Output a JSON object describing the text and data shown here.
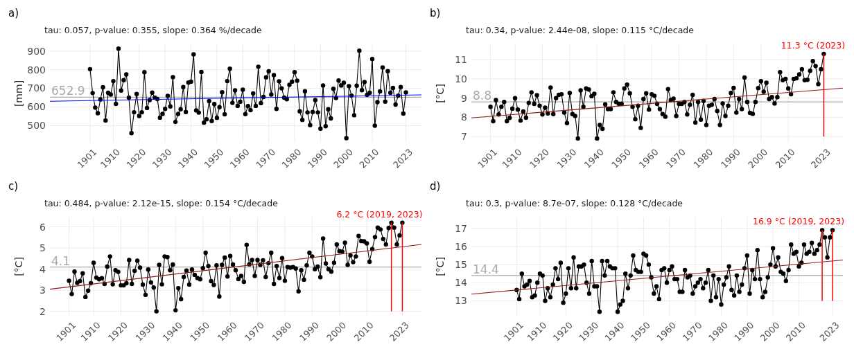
{
  "chart_data": [
    {
      "type": "line",
      "title": "a)",
      "subtitle": "tau: 0.057, p-value: 0.355, slope: 0.364 %/decade",
      "ylabel": "[mm]",
      "xlim": [
        1885.5,
        2029
      ],
      "ylim": [
        409,
        936
      ],
      "yticks": [
        500,
        600,
        700,
        800,
        900
      ],
      "xticks": [
        1901,
        1910,
        1920,
        1930,
        1940,
        1950,
        1960,
        1970,
        1980,
        1990,
        2000,
        2010,
        2023
      ],
      "grid": true,
      "marker": "circle",
      "x": [
        1901,
        1902,
        1903,
        1904,
        1905,
        1906,
        1907,
        1908,
        1909,
        1910,
        1911,
        1912,
        1913,
        1914,
        1915,
        1916,
        1917,
        1918,
        1919,
        1920,
        1921,
        1922,
        1923,
        1924,
        1925,
        1926,
        1927,
        1928,
        1929,
        1930,
        1931,
        1932,
        1933,
        1934,
        1935,
        1936,
        1937,
        1938,
        1939,
        1940,
        1941,
        1942,
        1943,
        1944,
        1945,
        1946,
        1947,
        1948,
        1949,
        1950,
        1951,
        1952,
        1953,
        1954,
        1955,
        1956,
        1957,
        1958,
        1959,
        1960,
        1961,
        1962,
        1963,
        1964,
        1965,
        1966,
        1967,
        1968,
        1969,
        1970,
        1971,
        1972,
        1973,
        1974,
        1975,
        1976,
        1977,
        1978,
        1979,
        1980,
        1981,
        1982,
        1983,
        1984,
        1985,
        1986,
        1987,
        1988,
        1989,
        1990,
        1991,
        1992,
        1993,
        1994,
        1995,
        1996,
        1997,
        1998,
        1999,
        2000,
        2001,
        2002,
        2003,
        2004,
        2005,
        2006,
        2007,
        2008,
        2009,
        2010,
        2011,
        2012,
        2013,
        2014,
        2015,
        2016,
        2017,
        2018,
        2019,
        2020,
        2021,
        2022,
        2023
      ],
      "series": [
        {
          "color": "#000000",
          "values": [
            803,
            675,
            597,
            567,
            640,
            706,
            528,
            676,
            667,
            739,
            617,
            913,
            688,
            744,
            775,
            650,
            460,
            572,
            670,
            552,
            572,
            787,
            595,
            637,
            677,
            650,
            643,
            543,
            563,
            590,
            660,
            603,
            760,
            520,
            563,
            588,
            707,
            573,
            731,
            736,
            882,
            582,
            570,
            788,
            516,
            534,
            632,
            525,
            616,
            542,
            599,
            679,
            561,
            739,
            805,
            622,
            689,
            606,
            628,
            693,
            562,
            605,
            583,
            673,
            606,
            816,
            621,
            654,
            759,
            791,
            667,
            771,
            590,
            738,
            700,
            650,
            642,
            719,
            736,
            787,
            741,
            577,
            531,
            685,
            571,
            503,
            573,
            637,
            571,
            484,
            715,
            497,
            588,
            539,
            698,
            648,
            742,
            715,
            730,
            433,
            712,
            661,
            556,
            714,
            902,
            690,
            734,
            665,
            676,
            857,
            500,
            626,
            684,
            812,
            629,
            792,
            676,
            702,
            613,
            661,
            707,
            565,
            678
          ]
        },
        {
          "type": "line",
          "color": "#0000ff",
          "marker": "none",
          "x": [
            1885.5,
            2029
          ],
          "values": [
            631,
            665
          ]
        }
      ],
      "ref_lines": [
        {
          "axis": "y",
          "value": 652.9,
          "label": "652.9",
          "color": "#aaaaaa"
        }
      ]
    },
    {
      "type": "line",
      "title": "b)",
      "subtitle": "tau: 0.34, p-value: 2.44e-08, slope: 0.115 °C/decade",
      "ylabel": "[°C]",
      "xlim": [
        1894,
        2030
      ],
      "ylim": [
        6.68,
        11.8
      ],
      "yticks": [
        7,
        8,
        9,
        10,
        11
      ],
      "xticks": [
        1901,
        1910,
        1920,
        1930,
        1940,
        1950,
        1960,
        1970,
        1980,
        1990,
        2000,
        2010,
        2023
      ],
      "grid": true,
      "marker": "circle",
      "x": [
        1901,
        1902,
        1903,
        1904,
        1905,
        1906,
        1907,
        1908,
        1909,
        1910,
        1911,
        1912,
        1913,
        1914,
        1915,
        1916,
        1917,
        1918,
        1919,
        1920,
        1921,
        1922,
        1923,
        1924,
        1925,
        1926,
        1927,
        1928,
        1929,
        1930,
        1931,
        1932,
        1933,
        1934,
        1935,
        1936,
        1937,
        1938,
        1939,
        1940,
        1941,
        1942,
        1943,
        1944,
        1945,
        1946,
        1947,
        1948,
        1949,
        1950,
        1951,
        1952,
        1953,
        1954,
        1955,
        1956,
        1957,
        1958,
        1959,
        1960,
        1961,
        1962,
        1963,
        1964,
        1965,
        1966,
        1967,
        1968,
        1969,
        1970,
        1971,
        1972,
        1973,
        1974,
        1975,
        1976,
        1977,
        1978,
        1979,
        1980,
        1981,
        1982,
        1983,
        1984,
        1985,
        1986,
        1987,
        1988,
        1989,
        1990,
        1991,
        1992,
        1993,
        1994,
        1995,
        1996,
        1997,
        1998,
        1999,
        2000,
        2001,
        2002,
        2003,
        2004,
        2005,
        2006,
        2007,
        2008,
        2009,
        2010,
        2011,
        2012,
        2013,
        2014,
        2015,
        2016,
        2017,
        2018,
        2019,
        2020,
        2021,
        2022,
        2023
      ],
      "series": [
        {
          "color": "#000000",
          "values": [
            8.55,
            7.8,
            8.9,
            8.15,
            8.55,
            8.8,
            7.8,
            7.97,
            8.45,
            9.0,
            8.4,
            7.83,
            8.3,
            7.98,
            8.75,
            9.3,
            8.7,
            9.15,
            8.6,
            8.15,
            8.5,
            8.2,
            9.55,
            8.17,
            9.0,
            9.17,
            9.2,
            8.25,
            7.7,
            9.27,
            8.17,
            8.07,
            6.9,
            9.4,
            8.55,
            9.5,
            9.45,
            9.1,
            9.22,
            6.9,
            7.6,
            7.4,
            8.67,
            8.43,
            8.43,
            9.3,
            8.8,
            8.7,
            8.7,
            9.5,
            9.7,
            9.25,
            8.55,
            7.9,
            8.6,
            7.45,
            8.95,
            9.25,
            8.4,
            9.2,
            9.12,
            8.7,
            8.43,
            8.17,
            8.03,
            9.47,
            8.9,
            8.97,
            8.07,
            8.7,
            8.7,
            8.8,
            8.15,
            8.65,
            9.17,
            7.73,
            8.8,
            7.88,
            8.85,
            7.6,
            8.6,
            8.65,
            8.95,
            8.33,
            7.6,
            8.72,
            8.07,
            8.6,
            9.27,
            9.53,
            8.25,
            8.95,
            8.43,
            10.07,
            8.8,
            8.23,
            8.18,
            8.8,
            9.52,
            9.88,
            9.33,
            9.8,
            8.95,
            9.05,
            8.72,
            9.05,
            10.35,
            9.93,
            10.0,
            9.5,
            9.2,
            10.0,
            10.03,
            10.23,
            10.5,
            9.93,
            9.95,
            10.42,
            10.93,
            10.67,
            9.73,
            10.5,
            11.3
          ]
        },
        {
          "type": "line",
          "color": "#8b1a1a",
          "marker": "none",
          "x": [
            1894,
            2030
          ],
          "values": [
            7.97,
            9.52
          ]
        }
      ],
      "ref_lines": [
        {
          "axis": "y",
          "value": 8.8,
          "label": "8.8",
          "color": "#aaaaaa"
        },
        {
          "axis": "x",
          "value": 2023,
          "label": "11.3 °C (2023)",
          "color": "#ff0000"
        }
      ]
    },
    {
      "type": "line",
      "title": "c)",
      "subtitle": "tau: 0.484, p-value: 2.12e-15, slope: 0.154 °C/decade",
      "ylabel": "[°C]",
      "xlim": [
        1894,
        2030
      ],
      "ylim": [
        1.79,
        6.45
      ],
      "yticks": [
        2,
        3,
        4,
        5,
        6
      ],
      "xticks": [
        1901,
        1910,
        1920,
        1930,
        1940,
        1950,
        1960,
        1970,
        1980,
        1990,
        2000,
        2010,
        2023
      ],
      "grid": true,
      "marker": "circle",
      "x": [
        1901,
        1902,
        1903,
        1904,
        1905,
        1906,
        1907,
        1908,
        1909,
        1910,
        1911,
        1912,
        1913,
        1914,
        1915,
        1916,
        1917,
        1918,
        1919,
        1920,
        1921,
        1922,
        1923,
        1924,
        1925,
        1926,
        1927,
        1928,
        1929,
        1930,
        1931,
        1932,
        1933,
        1934,
        1935,
        1936,
        1937,
        1938,
        1939,
        1940,
        1941,
        1942,
        1943,
        1944,
        1945,
        1946,
        1947,
        1948,
        1949,
        1950,
        1951,
        1952,
        1953,
        1954,
        1955,
        1956,
        1957,
        1958,
        1959,
        1960,
        1961,
        1962,
        1963,
        1964,
        1965,
        1966,
        1967,
        1968,
        1969,
        1970,
        1971,
        1972,
        1973,
        1974,
        1975,
        1976,
        1977,
        1978,
        1979,
        1980,
        1981,
        1982,
        1983,
        1984,
        1985,
        1986,
        1987,
        1988,
        1989,
        1990,
        1991,
        1992,
        1993,
        1994,
        1995,
        1996,
        1997,
        1998,
        1999,
        2000,
        2001,
        2002,
        2003,
        2004,
        2005,
        2006,
        2007,
        2008,
        2009,
        2010,
        2011,
        2012,
        2013,
        2014,
        2015,
        2016,
        2017,
        2018,
        2019,
        2020,
        2021,
        2022,
        2023
      ],
      "series": [
        {
          "color": "#000000",
          "values": [
            3.45,
            2.82,
            3.88,
            3.35,
            3.43,
            3.8,
            2.68,
            2.98,
            3.33,
            4.3,
            3.6,
            3.52,
            3.57,
            3.3,
            4.12,
            4.6,
            3.28,
            3.95,
            3.87,
            3.23,
            3.23,
            3.33,
            4.43,
            3.3,
            3.92,
            4.4,
            4.07,
            3.27,
            2.78,
            3.98,
            3.37,
            3.13,
            2.0,
            4.2,
            3.28,
            4.6,
            4.57,
            3.95,
            4.22,
            2.05,
            3.1,
            2.58,
            3.63,
            3.93,
            3.27,
            3.98,
            3.73,
            3.58,
            3.52,
            4.05,
            4.78,
            4.15,
            3.43,
            3.25,
            4.18,
            2.7,
            4.2,
            4.55,
            3.65,
            4.62,
            4.22,
            3.95,
            3.53,
            3.68,
            3.4,
            5.15,
            4.23,
            4.43,
            3.68,
            4.43,
            4.2,
            4.42,
            3.63,
            4.28,
            4.78,
            3.3,
            4.15,
            3.58,
            4.52,
            3.45,
            4.1,
            4.07,
            4.1,
            4.03,
            2.95,
            3.95,
            3.5,
            4.18,
            4.78,
            4.6,
            4.0,
            4.12,
            3.62,
            5.45,
            4.27,
            4.0,
            3.88,
            4.3,
            5.17,
            4.85,
            4.83,
            5.25,
            4.2,
            4.65,
            4.33,
            4.6,
            5.57,
            5.33,
            5.32,
            5.22,
            4.35,
            4.95,
            5.52,
            5.97,
            5.88,
            5.43,
            5.17,
            5.95,
            6.2,
            5.97,
            5.17,
            5.6,
            6.2
          ]
        },
        {
          "type": "line",
          "color": "#8b1a1a",
          "marker": "none",
          "x": [
            1894,
            2030
          ],
          "values": [
            3.05,
            5.17
          ]
        }
      ],
      "ref_lines": [
        {
          "axis": "y",
          "value": 4.1,
          "label": "4.1",
          "color": "#aaaaaa"
        },
        {
          "axis": "x",
          "value": 2019,
          "label": null,
          "color": "#ff0000"
        },
        {
          "axis": "x",
          "value": 2023,
          "label": "6.2 °C (2019, 2023)",
          "color": "#ff0000"
        }
      ]
    },
    {
      "type": "line",
      "title": "d)",
      "subtitle": "tau: 0.3, p-value: 8.7e-07, slope: 0.128 °C/decade",
      "ylabel": "[°C]",
      "xlim": [
        1883.5,
        2027
      ],
      "ylim": [
        12.18,
        17.6
      ],
      "yticks": [
        13,
        14,
        15,
        16,
        17
      ],
      "xticks": [
        1901,
        1910,
        1920,
        1930,
        1940,
        1950,
        1960,
        1970,
        1980,
        1990,
        2000,
        2010,
        2023
      ],
      "grid": true,
      "marker": "circle",
      "x": [
        1901,
        1902,
        1903,
        1904,
        1905,
        1906,
        1907,
        1908,
        1909,
        1910,
        1911,
        1912,
        1913,
        1914,
        1915,
        1916,
        1917,
        1918,
        1919,
        1920,
        1921,
        1922,
        1923,
        1924,
        1925,
        1926,
        1927,
        1928,
        1929,
        1930,
        1931,
        1932,
        1933,
        1934,
        1935,
        1936,
        1937,
        1938,
        1939,
        1940,
        1941,
        1942,
        1943,
        1944,
        1945,
        1946,
        1947,
        1948,
        1949,
        1950,
        1951,
        1952,
        1953,
        1954,
        1955,
        1956,
        1957,
        1958,
        1959,
        1960,
        1961,
        1962,
        1963,
        1964,
        1965,
        1966,
        1967,
        1968,
        1969,
        1970,
        1971,
        1972,
        1973,
        1974,
        1975,
        1976,
        1977,
        1978,
        1979,
        1980,
        1981,
        1982,
        1983,
        1984,
        1985,
        1986,
        1987,
        1988,
        1989,
        1990,
        1991,
        1992,
        1993,
        1994,
        1995,
        1996,
        1997,
        1998,
        1999,
        2000,
        2001,
        2002,
        2003,
        2004,
        2005,
        2006,
        2007,
        2008,
        2009,
        2010,
        2011,
        2012,
        2013,
        2014,
        2015,
        2016,
        2017,
        2018,
        2019,
        2020,
        2021,
        2022,
        2023
      ],
      "series": [
        {
          "color": "#000000",
          "values": [
            13.6,
            13.1,
            14.5,
            13.8,
            13.9,
            14.1,
            13.2,
            13.3,
            14.0,
            14.5,
            14.4,
            13.0,
            13.7,
            13.2,
            13.9,
            14.8,
            14.2,
            15.1,
            12.9,
            13.4,
            14.8,
            13.7,
            15.4,
            13.7,
            14.9,
            14.9,
            15.0,
            14.0,
            13.4,
            15.2,
            13.8,
            13.8,
            12.4,
            15.2,
            14.4,
            15.2,
            14.9,
            14.8,
            14.8,
            12.4,
            12.8,
            13.0,
            14.5,
            13.7,
            14.4,
            15.5,
            14.7,
            14.6,
            14.6,
            15.6,
            15.5,
            15.0,
            14.3,
            13.4,
            13.8,
            13.1,
            14.7,
            14.8,
            14.0,
            14.7,
            14.9,
            14.2,
            14.2,
            13.5,
            13.5,
            14.7,
            14.3,
            14.4,
            13.4,
            13.8,
            14.0,
            14.2,
            13.7,
            14.0,
            14.7,
            13.0,
            14.4,
            13.2,
            14.2,
            12.8,
            13.9,
            14.3,
            14.9,
            13.6,
            13.3,
            14.4,
            13.5,
            13.9,
            14.8,
            15.5,
            13.4,
            14.7,
            14.2,
            15.8,
            14.2,
            13.2,
            13.5,
            14.3,
            15.0,
            15.9,
            14.9,
            15.4,
            14.6,
            14.5,
            14.1,
            14.7,
            16.1,
            15.6,
            15.7,
            14.9,
            15.1,
            16.1,
            15.6,
            15.7,
            16.2,
            15.6,
            15.8,
            16.1,
            16.9,
            16.5,
            15.4,
            16.5,
            16.9
          ]
        },
        {
          "type": "line",
          "color": "#8b1a1a",
          "marker": "none",
          "x": [
            1883.5,
            2027
          ],
          "values": [
            13.37,
            15.25
          ]
        }
      ],
      "ref_lines": [
        {
          "axis": "y",
          "value": 14.4,
          "label": "14.4",
          "color": "#aaaaaa"
        },
        {
          "axis": "x",
          "value": 2019,
          "label": null,
          "color": "#ff0000"
        },
        {
          "axis": "x",
          "value": 2023,
          "label": "16.9 °C (2019, 2023)",
          "color": "#ff0000"
        }
      ]
    }
  ]
}
